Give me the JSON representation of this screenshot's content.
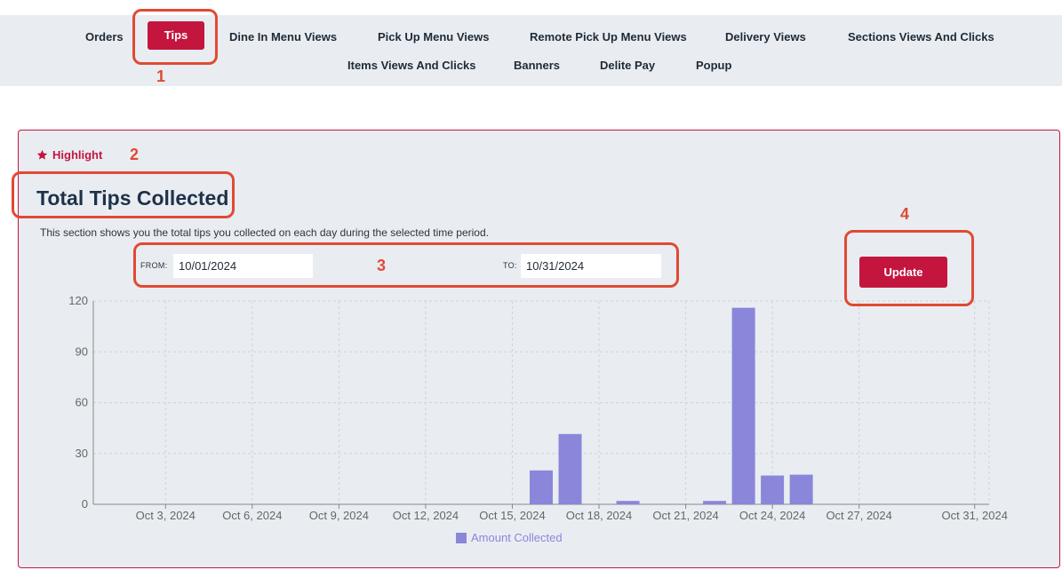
{
  "nav": {
    "row1": [
      "Orders",
      "Tips",
      "Dine In Menu Views",
      "Pick Up Menu Views",
      "Remote Pick Up Menu Views",
      "Delivery Views",
      "Sections Views And Clicks"
    ],
    "row2": [
      "Items Views And Clicks",
      "Banners",
      "Delite Pay",
      "Popup"
    ],
    "active": "Tips"
  },
  "callouts": [
    "1",
    "2",
    "3",
    "4"
  ],
  "section": {
    "highlight_label": "Highlight",
    "title": "Total Tips Collected",
    "description": "This section shows you the total tips you collected on each day during the selected time period."
  },
  "filters": {
    "from_label": "FROM:",
    "from_value": "10/01/2024",
    "to_label": "TO:",
    "to_value": "10/31/2024",
    "update_label": "Update"
  },
  "colors": {
    "accent": "#c4153f",
    "bar": "#8a86da",
    "callout": "#e04a33"
  },
  "chart_data": {
    "type": "bar",
    "x_start": "Oct 1, 2024",
    "x_end": "Oct 31, 2024",
    "x_ticks": [
      "Oct 3, 2024",
      "Oct 6, 2024",
      "Oct 9, 2024",
      "Oct 12, 2024",
      "Oct 15, 2024",
      "Oct 18, 2024",
      "Oct 21, 2024",
      "Oct 24, 2024",
      "Oct 27, 2024",
      "Oct 31, 2024"
    ],
    "y_ticks": [
      0,
      30,
      60,
      90,
      120
    ],
    "ylim": [
      0,
      120
    ],
    "grid": true,
    "legend_position": "bottom-center",
    "series": [
      {
        "name": "Amount Collected",
        "points": [
          {
            "date": "Oct 16, 2024",
            "value": 20
          },
          {
            "date": "Oct 17, 2024",
            "value": 41.5
          },
          {
            "date": "Oct 19, 2024",
            "value": 2
          },
          {
            "date": "Oct 22, 2024",
            "value": 2
          },
          {
            "date": "Oct 23, 2024",
            "value": 116
          },
          {
            "date": "Oct 24, 2024",
            "value": 17
          },
          {
            "date": "Oct 25, 2024",
            "value": 17.5
          }
        ]
      }
    ]
  }
}
